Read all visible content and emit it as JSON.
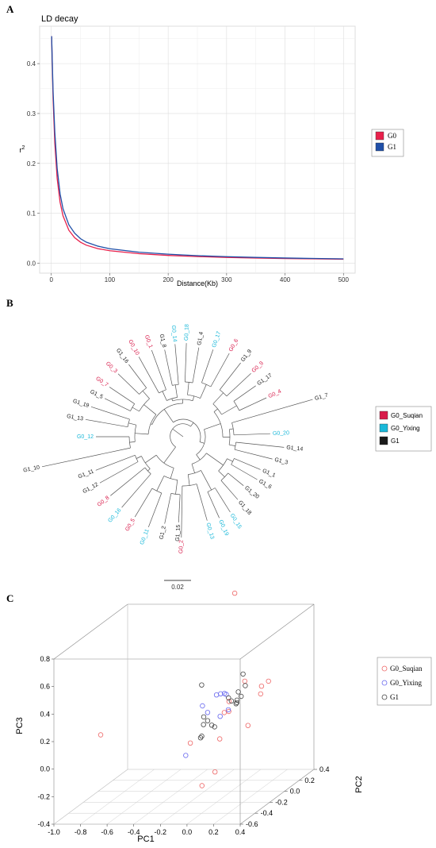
{
  "panels": {
    "a": "A",
    "b": "B",
    "c": "C"
  },
  "colors": {
    "g0": "#e8204b",
    "g1": "#1f4fa8",
    "suqian": "#d81b4a",
    "yixing": "#1ab8d9",
    "black": "#1a1a1a",
    "pc_suqian": "#ee6666",
    "pc_yixing": "#6666ee",
    "pc_g1": "#444444"
  },
  "chart_data": [
    {
      "type": "line",
      "title": "LD decay",
      "xlabel": "Distance(Kb)",
      "ylabel": "r",
      "ylabel_sup": "2",
      "xlim": [
        0,
        500
      ],
      "ylim": [
        0,
        0.45
      ],
      "xticks": [
        0,
        100,
        200,
        300,
        400,
        500
      ],
      "yticks": [
        0.0,
        0.1,
        0.2,
        0.3,
        0.4
      ],
      "legend_position": "right",
      "series": [
        {
          "name": "G0",
          "color": "#e8204b",
          "x": [
            0.5,
            3,
            6,
            10,
            15,
            20,
            30,
            40,
            50,
            60,
            80,
            100,
            150,
            200,
            250,
            300,
            350,
            400,
            450,
            500
          ],
          "y": [
            0.455,
            0.33,
            0.24,
            0.17,
            0.122,
            0.095,
            0.066,
            0.051,
            0.042,
            0.036,
            0.029,
            0.025,
            0.019,
            0.0155,
            0.0132,
            0.0115,
            0.0102,
            0.0093,
            0.0086,
            0.0079
          ]
        },
        {
          "name": "G1",
          "color": "#1f4fa8",
          "x": [
            0.5,
            3,
            6,
            10,
            15,
            20,
            30,
            40,
            50,
            60,
            80,
            100,
            150,
            200,
            250,
            300,
            350,
            400,
            450,
            500
          ],
          "y": [
            0.455,
            0.345,
            0.262,
            0.19,
            0.139,
            0.109,
            0.077,
            0.06,
            0.049,
            0.042,
            0.034,
            0.029,
            0.022,
            0.018,
            0.015,
            0.013,
            0.0115,
            0.0103,
            0.0094,
            0.0087
          ]
        }
      ]
    },
    {
      "type": "tree",
      "scale_label": "0.02",
      "legend": [
        {
          "name": "G0_Suqian",
          "color": "#d81b4a"
        },
        {
          "name": "G0_Yixing",
          "color": "#1ab8d9"
        },
        {
          "name": "G1",
          "color": "#1a1a1a"
        }
      ],
      "leaves": [
        {
          "label": "G0_2",
          "group": "suqian",
          "angle": 91,
          "r": 127
        },
        {
          "label": "G0_13",
          "group": "yixing",
          "angle": 74,
          "r": 110
        },
        {
          "label": "G0_19",
          "group": "yixing",
          "angle": 66,
          "r": 112
        },
        {
          "label": "G0_15",
          "group": "yixing",
          "angle": 58,
          "r": 112
        },
        {
          "label": "G1_18",
          "group": "g1",
          "angle": 49,
          "r": 105
        },
        {
          "label": "G1_20",
          "group": "g1",
          "angle": 39,
          "r": 98
        },
        {
          "label": "G1_6",
          "group": "g1",
          "angle": 30,
          "r": 108
        },
        {
          "label": "G1_1",
          "group": "g1",
          "angle": 23,
          "r": 106
        },
        {
          "label": "G1_3",
          "group": "g1",
          "angle": 14,
          "r": 116
        },
        {
          "label": "G1_14",
          "group": "g1",
          "angle": 6,
          "r": 128
        },
        {
          "label": "G0_20",
          "group": "yixing",
          "angle": -2,
          "r": 110
        },
        {
          "label": "G1_7",
          "group": "g1",
          "angle": -16,
          "r": 170
        },
        {
          "label": "G0_4",
          "group": "suqian",
          "angle": -25,
          "r": 116
        },
        {
          "label": "G1_17",
          "group": "g1",
          "angle": -35,
          "r": 112
        },
        {
          "label": "G0_9",
          "group": "suqian",
          "angle": -43,
          "r": 117
        },
        {
          "label": "G1_9",
          "group": "g1",
          "angle": -52,
          "r": 118
        },
        {
          "label": "G0_6",
          "group": "suqian",
          "angle": -61,
          "r": 120
        },
        {
          "label": "G0_17",
          "group": "yixing",
          "angle": -71,
          "r": 116
        },
        {
          "label": "G1_4",
          "group": "g1",
          "angle": -80,
          "r": 114
        },
        {
          "label": "G0_18",
          "group": "yixing",
          "angle": -88,
          "r": 118
        },
        {
          "label": "G0_14",
          "group": "yixing",
          "angle": -95,
          "r": 117
        },
        {
          "label": "G1_8",
          "group": "g1",
          "angle": -102,
          "r": 112
        },
        {
          "label": "G0_1",
          "group": "suqian",
          "angle": -110,
          "r": 116
        },
        {
          "label": "G0_10",
          "group": "suqian",
          "angle": -119,
          "r": 115
        },
        {
          "label": "G1_16",
          "group": "g1",
          "angle": -127,
          "r": 114
        },
        {
          "label": "G0_3",
          "group": "suqian",
          "angle": -136,
          "r": 114
        },
        {
          "label": "G0_7",
          "group": "suqian",
          "angle": -146,
          "r": 112
        },
        {
          "label": "G1_5",
          "group": "g1",
          "angle": -154,
          "r": 110
        },
        {
          "label": "G1_19",
          "group": "g1",
          "angle": -162,
          "r": 122
        },
        {
          "label": "G1_13",
          "group": "g1",
          "angle": -170,
          "r": 125
        },
        {
          "label": "G0_12",
          "group": "yixing",
          "angle": -180,
          "r": 110
        },
        {
          "label": "G1_10",
          "group": "g1",
          "angle": -192,
          "r": 182
        },
        {
          "label": "G1_11",
          "group": "g1",
          "angle": -201,
          "r": 118
        },
        {
          "label": "G1_12",
          "group": "g1",
          "angle": -209,
          "r": 120
        },
        {
          "label": "G0_8",
          "group": "suqian",
          "angle": -219,
          "r": 118
        },
        {
          "label": "G0_16",
          "group": "yixing",
          "angle": -229,
          "r": 118
        },
        {
          "label": "G0_5",
          "group": "suqian",
          "angle": -239,
          "r": 118
        },
        {
          "label": "G0_11",
          "group": "yixing",
          "angle": -249,
          "r": 122
        },
        {
          "label": "G1_2",
          "group": "g1",
          "angle": -258,
          "r": 112
        },
        {
          "label": "G1_15",
          "group": "g1",
          "angle": -267,
          "r": 108
        }
      ]
    },
    {
      "type": "scatter",
      "xlabel": "PC1",
      "ylabel": "PC3",
      "zlabel": "PC2",
      "xlim": [
        -1.0,
        0.4
      ],
      "ylim": [
        -0.4,
        0.8
      ],
      "zlim": [
        -0.6,
        0.4
      ],
      "xticks": [
        "-1.0",
        "-0.8",
        "-0.6",
        "-0.4",
        "-0.2",
        "0.0",
        "0.2",
        "0.4"
      ],
      "yticks": [
        "-0.4",
        "-0.2",
        "0.0",
        "0.2",
        "0.4",
        "0.6",
        "0.8"
      ],
      "zticks": [
        "-0.6",
        "-0.4",
        "-0.2",
        "0.0",
        "0.2",
        "0.4"
      ],
      "legend": [
        {
          "name": "G0_Suqian",
          "color": "#ee6666"
        },
        {
          "name": "G0_Yixing",
          "color": "#6666ee"
        },
        {
          "name": "G1",
          "color": "#444444"
        }
      ],
      "points": [
        {
          "g": "suqian",
          "pc1": -0.14,
          "pc2": 0.3,
          "pc3": 0.92
        },
        {
          "g": "suqian",
          "pc1": -0.87,
          "pc2": -0.2,
          "pc3": 0.09
        },
        {
          "g": "suqian",
          "pc1": 0.13,
          "pc2": -0.05,
          "pc3": 0.42
        },
        {
          "g": "suqian",
          "pc1": 0.25,
          "pc2": -0.04,
          "pc3": 0.38
        },
        {
          "g": "suqian",
          "pc1": 0.28,
          "pc2": 0.0,
          "pc3": 0.4
        },
        {
          "g": "suqian",
          "pc1": 0.21,
          "pc2": 0.02,
          "pc3": 0.3
        },
        {
          "g": "suqian",
          "pc1": 0.12,
          "pc2": -0.25,
          "pc3": 0.28
        },
        {
          "g": "suqian",
          "pc1": 0.17,
          "pc2": -0.08,
          "pc3": 0.11
        },
        {
          "g": "suqian",
          "pc1": 0.05,
          "pc2": -0.12,
          "pc3": 0.3
        },
        {
          "g": "suqian",
          "pc1": 0.08,
          "pc2": -0.3,
          "pc3": 0.1
        },
        {
          "g": "suqian",
          "pc1": 0.1,
          "pc2": -0.4,
          "pc3": -0.1
        },
        {
          "g": "suqian",
          "pc1": 0.03,
          "pc2": -0.45,
          "pc3": -0.18
        },
        {
          "g": "suqian",
          "pc1": -0.03,
          "pc2": -0.5,
          "pc3": 0.15
        },
        {
          "g": "suqian",
          "pc1": 0.07,
          "pc2": -0.22,
          "pc3": 0.26
        },
        {
          "g": "yixing",
          "pc1": 0.0,
          "pc2": -0.2,
          "pc3": 0.38
        },
        {
          "g": "yixing",
          "pc1": 0.02,
          "pc2": -0.18,
          "pc3": 0.38
        },
        {
          "g": "yixing",
          "pc1": 0.04,
          "pc2": -0.14,
          "pc3": 0.36
        },
        {
          "g": "yixing",
          "pc1": 0.06,
          "pc2": -0.2,
          "pc3": 0.39
        },
        {
          "g": "yixing",
          "pc1": -0.05,
          "pc2": -0.3,
          "pc3": 0.34
        },
        {
          "g": "yixing",
          "pc1": 0.0,
          "pc2": -0.32,
          "pc3": 0.3
        },
        {
          "g": "yixing",
          "pc1": 0.05,
          "pc2": -0.24,
          "pc3": 0.24
        },
        {
          "g": "yixing",
          "pc1": 0.1,
          "pc2": -0.22,
          "pc3": 0.28
        },
        {
          "g": "yixing",
          "pc1": -0.12,
          "pc2": -0.4,
          "pc3": 0.02
        },
        {
          "g": "g1",
          "pc1": 0.1,
          "pc2": -0.02,
          "pc3": 0.46
        },
        {
          "g": "g1",
          "pc1": 0.15,
          "pc2": -0.08,
          "pc3": 0.4
        },
        {
          "g": "g1",
          "pc1": 0.12,
          "pc2": -0.12,
          "pc3": 0.37
        },
        {
          "g": "g1",
          "pc1": 0.08,
          "pc2": -0.18,
          "pc3": 0.35
        },
        {
          "g": "g1",
          "pc1": 0.13,
          "pc2": -0.1,
          "pc3": 0.33
        },
        {
          "g": "g1",
          "pc1": 0.11,
          "pc2": -0.12,
          "pc3": 0.31
        },
        {
          "g": "g1",
          "pc1": 0.12,
          "pc2": -0.14,
          "pc3": 0.3
        },
        {
          "g": "g1",
          "pc1": 0.09,
          "pc2": -0.16,
          "pc3": 0.32
        },
        {
          "g": "g1",
          "pc1": -0.1,
          "pc2": -0.22,
          "pc3": 0.46
        },
        {
          "g": "g1",
          "pc1": -0.04,
          "pc2": -0.3,
          "pc3": 0.26
        },
        {
          "g": "g1",
          "pc1": 0.0,
          "pc2": -0.32,
          "pc3": 0.24
        },
        {
          "g": "g1",
          "pc1": -0.02,
          "pc2": -0.34,
          "pc3": 0.22
        },
        {
          "g": "g1",
          "pc1": 0.02,
          "pc2": -0.3,
          "pc3": 0.2
        },
        {
          "g": "g1",
          "pc1": 0.03,
          "pc2": -0.28,
          "pc3": 0.18
        },
        {
          "g": "g1",
          "pc1": 0.0,
          "pc2": -0.4,
          "pc3": 0.16
        },
        {
          "g": "g1",
          "pc1": -0.02,
          "pc2": -0.38,
          "pc3": 0.14
        },
        {
          "g": "g1",
          "pc1": 0.07,
          "pc2": -0.06,
          "pc3": 0.26
        }
      ]
    }
  ]
}
